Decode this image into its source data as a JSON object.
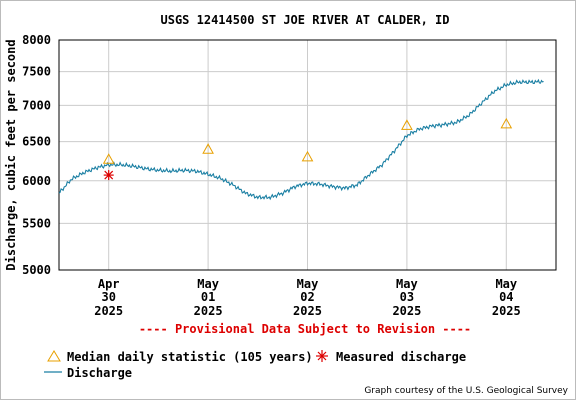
{
  "chart_data": {
    "type": "line",
    "title": "USGS 12414500 ST JOE RIVER AT CALDER, ID",
    "ylabel": "Discharge, cubic feet per second",
    "xlabel": "",
    "y_scale": "log",
    "ylim": [
      5000,
      8000
    ],
    "y_ticks": [
      "8000",
      "7500",
      "7000",
      "6500",
      "6000",
      "5500",
      "5000"
    ],
    "xlim": [
      "2025-04-29T12:00",
      "2025-05-04T12:00"
    ],
    "x_ticks": [
      {
        "date": "2025-04-30",
        "month": "Apr",
        "day": "30",
        "year": "2025"
      },
      {
        "date": "2025-05-01",
        "month": "May",
        "day": "01",
        "year": "2025"
      },
      {
        "date": "2025-05-02",
        "month": "May",
        "day": "02",
        "year": "2025"
      },
      {
        "date": "2025-05-03",
        "month": "May",
        "day": "03",
        "year": "2025"
      },
      {
        "date": "2025-05-04",
        "month": "May",
        "day": "04",
        "year": "2025"
      }
    ],
    "grid": true,
    "provisional_note": "---- Provisional Data Subject to Revision ----",
    "credit": "Graph courtesy of the U.S. Geological Survey",
    "legend_placement": "bottom",
    "series": [
      {
        "name": "Discharge",
        "style": "line",
        "color": "#1a7fa3",
        "points": [
          [
            "2025-04-29T12:00",
            5850
          ],
          [
            "2025-04-29T15:00",
            6020
          ],
          [
            "2025-04-29T18:00",
            6100
          ],
          [
            "2025-04-29T21:00",
            6160
          ],
          [
            "2025-04-30T00:00",
            6200
          ],
          [
            "2025-04-30T03:00",
            6200
          ],
          [
            "2025-04-30T06:00",
            6180
          ],
          [
            "2025-04-30T09:00",
            6150
          ],
          [
            "2025-04-30T12:00",
            6130
          ],
          [
            "2025-04-30T15:00",
            6120
          ],
          [
            "2025-04-30T18:00",
            6130
          ],
          [
            "2025-04-30T21:00",
            6120
          ],
          [
            "2025-05-01T00:00",
            6080
          ],
          [
            "2025-05-01T03:00",
            6030
          ],
          [
            "2025-05-01T06:00",
            5950
          ],
          [
            "2025-05-01T09:00",
            5850
          ],
          [
            "2025-05-01T12:00",
            5800
          ],
          [
            "2025-05-01T15:00",
            5800
          ],
          [
            "2025-05-01T18:00",
            5850
          ],
          [
            "2025-05-01T21:00",
            5930
          ],
          [
            "2025-05-02T00:00",
            5970
          ],
          [
            "2025-05-02T03:00",
            5960
          ],
          [
            "2025-05-02T06:00",
            5930
          ],
          [
            "2025-05-02T09:00",
            5910
          ],
          [
            "2025-05-02T12:00",
            5950
          ],
          [
            "2025-05-02T15:00",
            6080
          ],
          [
            "2025-05-02T18:00",
            6200
          ],
          [
            "2025-05-02T21:00",
            6380
          ],
          [
            "2025-05-03T00:00",
            6580
          ],
          [
            "2025-05-03T03:00",
            6670
          ],
          [
            "2025-05-03T06:00",
            6710
          ],
          [
            "2025-05-03T09:00",
            6730
          ],
          [
            "2025-05-03T12:00",
            6760
          ],
          [
            "2025-05-03T15:00",
            6860
          ],
          [
            "2025-05-03T18:00",
            7030
          ],
          [
            "2025-05-03T21:00",
            7200
          ],
          [
            "2025-05-04T00:00",
            7300
          ],
          [
            "2025-05-04T03:00",
            7340
          ],
          [
            "2025-05-04T06:00",
            7340
          ],
          [
            "2025-05-04T09:00",
            7350
          ]
        ]
      },
      {
        "name": "Median daily statistic (105 years)",
        "style": "triangle",
        "color": "#e8a000",
        "points": [
          [
            "2025-04-30T00:00",
            6270
          ],
          [
            "2025-05-01T00:00",
            6400
          ],
          [
            "2025-05-02T00:00",
            6300
          ],
          [
            "2025-05-03T00:00",
            6720
          ],
          [
            "2025-05-04T00:00",
            6740
          ]
        ]
      },
      {
        "name": "Measured discharge",
        "style": "asterisk",
        "color": "#dd0000",
        "points": [
          [
            "2025-04-30T00:00",
            6070
          ]
        ]
      }
    ]
  }
}
